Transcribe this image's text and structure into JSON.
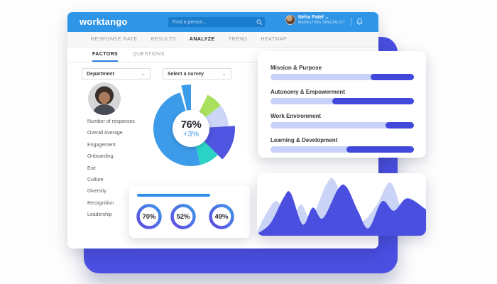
{
  "colors": {
    "navbar_blue": "#2f95e6",
    "search_field_blue": "#1a7ccd",
    "backdrop_indigo": "#4b4fe1",
    "accent_blue": "#3d9ce9",
    "accent_indigo": "#4f55e0",
    "accent_teal": "#2bd3c5",
    "accent_lime": "#a9e05e",
    "accent_lavender": "#ccd7f8",
    "bar_light": "#c6d2f9",
    "bar_dark": "#4348dc",
    "tab_underline": "#2d7fe0",
    "gauge_title_bar": "#2e8ee8"
  },
  "navbar": {
    "logo": "worktango",
    "search_placeholder": "Find a person...",
    "user_name": "Neha Patel",
    "user_caret": "⌄",
    "user_role": "MARKETING SPECIALIST"
  },
  "tabs": {
    "items": [
      {
        "label": "RESPONSE RATE",
        "active": false
      },
      {
        "label": "RESULTS",
        "active": false
      },
      {
        "label": "ANALYZE",
        "active": true
      },
      {
        "label": "TREND",
        "active": false
      },
      {
        "label": "HEATMAP",
        "active": false
      }
    ]
  },
  "subtabs": {
    "items": [
      {
        "label": "FACTORS",
        "active": true
      },
      {
        "label": "QUESTIONS",
        "active": false
      }
    ]
  },
  "filters": {
    "department_label": "Department",
    "survey_label": "Select a survey",
    "chevron": "⌄"
  },
  "sidebar": {
    "items": [
      "Number of responses",
      "Overall Average",
      "Engagement",
      "Onboarding",
      "Exit",
      "Culture",
      "Diversity",
      "Recognition",
      "Leadership"
    ]
  },
  "chart_data": [
    {
      "id": "overall-score-donut",
      "type": "pie",
      "center_label": "76%",
      "center_sublabel": "+3%",
      "segments": [
        {
          "name": "primary-blue",
          "value": 49.4,
          "start": 0.458,
          "color": "#3d9ce9",
          "raised": false
        },
        {
          "name": "top-blue-raised",
          "value": 10.5,
          "start": 0.963,
          "color": "#3d9ce9",
          "raised": true
        },
        {
          "name": "lime",
          "value": 7.2,
          "start": 0.073,
          "color": "#a9e05e",
          "raised": false
        },
        {
          "name": "lavender",
          "value": 9.5,
          "start": 0.145,
          "color": "#ccd7f8",
          "raised": false
        },
        {
          "name": "indigo-raised",
          "value": 13.3,
          "start": 0.24,
          "color": "#4f55e0",
          "raised": true
        },
        {
          "name": "teal",
          "value": 8.5,
          "start": 0.373,
          "color": "#2bd3c5",
          "raised": false
        }
      ]
    },
    {
      "id": "mini-gauges",
      "type": "gauge",
      "unit": "%",
      "values": [
        70,
        52,
        49
      ],
      "labels": [
        "70%",
        "52%",
        "49%"
      ]
    },
    {
      "id": "factor-bars",
      "type": "bar",
      "orientation": "horizontal",
      "categories": [
        "Mission & Purpose",
        "Autonomy & Empowerment",
        "Work Environment",
        "Learning & Development"
      ],
      "series": [
        {
          "name": "light-segment",
          "color": "#c6d2f9",
          "values": [
            70,
            43,
            80,
            53
          ]
        },
        {
          "name": "dark-segment",
          "color": "#4348dc",
          "values": [
            30,
            57,
            20,
            47
          ]
        }
      ]
    },
    {
      "id": "trend-waves",
      "type": "area",
      "x_range": [
        0,
        1
      ],
      "y_range": [
        0,
        1
      ],
      "series": [
        {
          "name": "background-wave",
          "color": "#c9d4f7",
          "points": [
            [
              0,
              0.06
            ],
            [
              0.06,
              0.38
            ],
            [
              0.12,
              0.55
            ],
            [
              0.19,
              0.22
            ],
            [
              0.26,
              0.5
            ],
            [
              0.32,
              0.28
            ],
            [
              0.41,
              0.82
            ],
            [
              0.46,
              0.88
            ],
            [
              0.54,
              0.34
            ],
            [
              0.62,
              0.22
            ],
            [
              0.71,
              0.5
            ],
            [
              0.79,
              0.85
            ],
            [
              0.87,
              0.32
            ],
            [
              0.94,
              0.18
            ],
            [
              1,
              0.12
            ]
          ]
        },
        {
          "name": "foreground-wave",
          "color": "#4a4fe0",
          "points": [
            [
              0,
              0.03
            ],
            [
              0.08,
              0.2
            ],
            [
              0.16,
              0.62
            ],
            [
              0.2,
              0.68
            ],
            [
              0.27,
              0.18
            ],
            [
              0.33,
              0.45
            ],
            [
              0.39,
              0.28
            ],
            [
              0.48,
              0.75
            ],
            [
              0.53,
              0.78
            ],
            [
              0.6,
              0.38
            ],
            [
              0.66,
              0.12
            ],
            [
              0.74,
              0.55
            ],
            [
              0.81,
              0.4
            ],
            [
              0.89,
              0.6
            ],
            [
              1,
              0.42
            ]
          ]
        }
      ]
    }
  ]
}
